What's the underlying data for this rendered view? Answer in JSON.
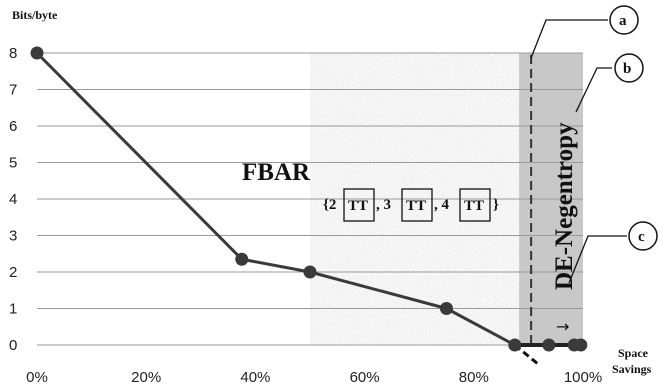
{
  "chart_data": {
    "type": "line",
    "ylabel": "Bits/byte",
    "xlabel_lines": [
      "Space",
      "Savings"
    ],
    "x_ticks": [
      "0%",
      "20%",
      "40%",
      "60%",
      "80%",
      "100%"
    ],
    "y_ticks": [
      "0",
      "1",
      "2",
      "3",
      "4",
      "5",
      "6",
      "7",
      "8"
    ],
    "xlim": [
      0,
      100
    ],
    "ylim": [
      0,
      8
    ],
    "grid": "horizontal",
    "series": [
      {
        "color": "#3a3a3a",
        "points": [
          {
            "x": 0,
            "y": 8
          },
          {
            "x": 37.5,
            "y": 2.35
          },
          {
            "x": 50,
            "y": 2.0
          },
          {
            "x": 75,
            "y": 1.0
          },
          {
            "x": 87.5,
            "y": 0.0
          },
          {
            "x": 93.75,
            "y": 0.0
          },
          {
            "x": 98.4,
            "y": 0.0
          },
          {
            "x": 99.6,
            "y": 0.0
          }
        ]
      }
    ],
    "regions": [
      {
        "name": "FBAR",
        "x_from": 50,
        "x_to": 88.3,
        "style": "noise",
        "color": "#cfcfcf"
      },
      {
        "name": "DE-Negentropy",
        "x_from": 88.3,
        "x_to": 100,
        "style": "solid",
        "color": "#c8c8c8"
      }
    ],
    "dashed_marker_x": 90.5,
    "dashed_tail": {
      "from_x": 87.5,
      "to_x": 92.0,
      "to_y": -0.55
    },
    "annotations": {
      "fbar": "FBAR",
      "negentropy": "DE-Negentropy",
      "set_open": "{2",
      "tt": "TT",
      "comma3": ", 3",
      "comma4": ", 4",
      "set_close": "}",
      "arrow": "→",
      "callouts": [
        "a",
        "b",
        "c"
      ]
    }
  }
}
